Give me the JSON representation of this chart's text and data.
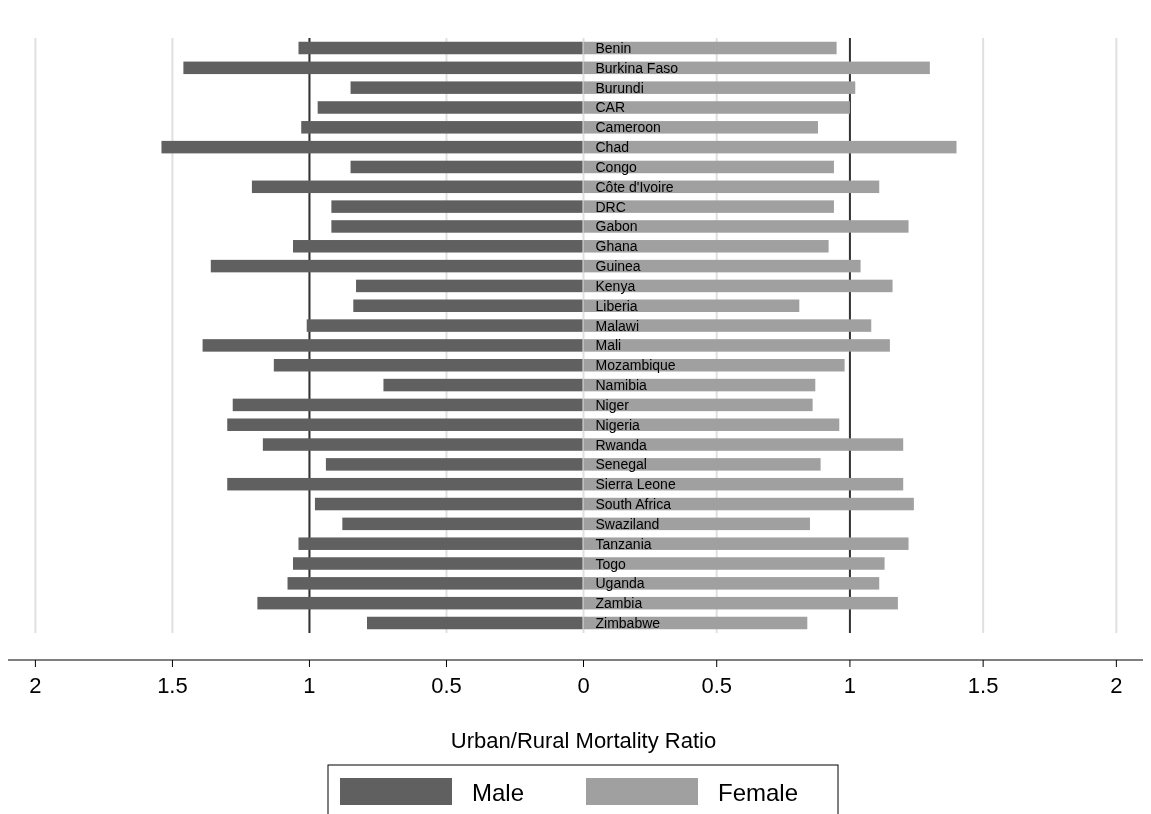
{
  "chart_data": [
    {
      "type": "bar",
      "orientation": "horizontal",
      "tick_labels": "x",
      "xlabel": "Urban/Rural Mortality Ratio",
      "categories": [
        null,
        null,
        null,
        null,
        null,
        null,
        null,
        null,
        null,
        null,
        null,
        null,
        null,
        null,
        null,
        null,
        null,
        null,
        null,
        null,
        null,
        null,
        null,
        null,
        null,
        null,
        null,
        null,
        null,
        null
      ],
      "series": [
        {
          "name": "Male",
          "color": "#606060",
          "values": [
            1.04,
            1.46,
            0.85,
            0.97,
            1.03,
            1.54,
            0.85,
            1.21,
            0.92,
            0.92,
            1.06,
            1.36,
            0.83,
            0.84,
            1.01,
            1.39,
            1.13,
            0.73,
            1.28,
            1.3,
            1.17,
            0.94,
            1.3,
            0.98,
            0.88,
            1.04,
            1.06,
            1.08,
            1.19,
            0.79
          ]
        }
      ],
      "xlim": [
        2.1,
        0
      ],
      "xticks": [
        2,
        1.5,
        1,
        0.5
      ],
      "ref_lines": [
        {
          "axis": "x",
          "value": 1,
          "color": "#333333"
        }
      ],
      "grid": "x",
      "legend": "bottom"
    },
    {
      "type": "bar",
      "orientation": "horizontal",
      "categories": [
        "Benin",
        "Burkina Faso",
        "Burundi",
        "CAR",
        "Cameroon",
        "Chad",
        "Congo",
        "Côte d'Ivoire",
        "DRC",
        "Gabon",
        "Ghana",
        "Guinea",
        "Kenya",
        "Liberia",
        "Malawi",
        "Mali",
        "Mozambique",
        "Namibia",
        "Niger",
        "Nigeria",
        "Rwanda",
        "Senegal",
        "Sierra Leone",
        "South Africa",
        "Swaziland",
        "Tanzania",
        "Togo",
        "Uganda",
        "Zambia",
        "Zimbabwe"
      ],
      "series": [
        {
          "name": "Female",
          "color": "#a0a0a0",
          "values": [
            0.95,
            1.3,
            1.02,
            1.0,
            0.88,
            1.4,
            0.94,
            1.11,
            0.94,
            1.22,
            0.92,
            1.04,
            1.16,
            0.81,
            1.08,
            1.15,
            0.98,
            0.87,
            0.86,
            0.96,
            1.2,
            0.89,
            1.2,
            1.24,
            0.85,
            1.22,
            1.13,
            1.11,
            1.18,
            0.84
          ]
        }
      ],
      "xlim": [
        0,
        2.1
      ],
      "xticks": [
        0,
        0.5,
        1,
        1.5,
        2
      ],
      "ref_lines": [
        {
          "axis": "x",
          "value": 1,
          "color": "#333333"
        }
      ],
      "grid": "x",
      "legend": "bottom"
    }
  ]
}
